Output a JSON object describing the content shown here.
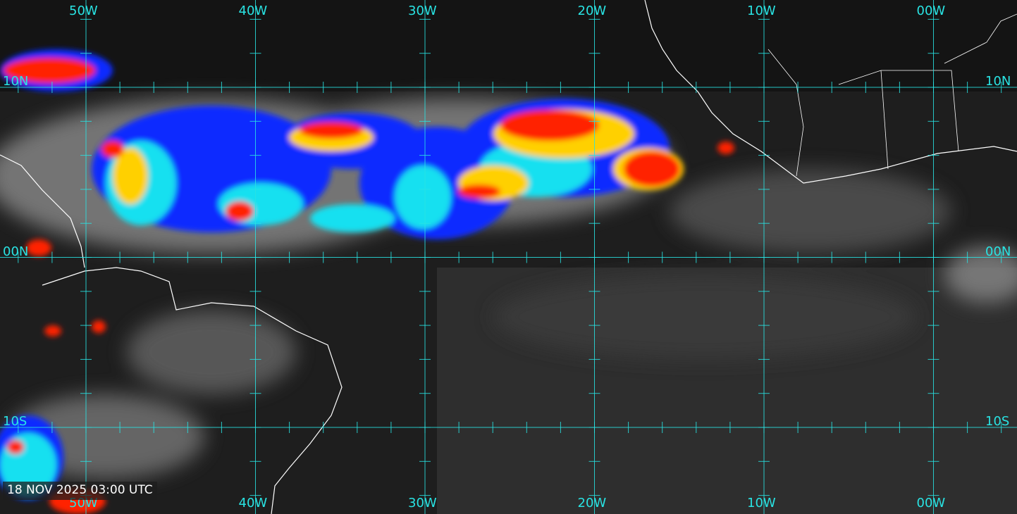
{
  "timestamp": "18 NOV 2025 03:00 UTC",
  "grid": {
    "color": "#29e3e3",
    "longitudes": [
      {
        "value": -50,
        "label": "50W"
      },
      {
        "value": -40,
        "label": "40W"
      },
      {
        "value": -30,
        "label": "30W"
      },
      {
        "value": -20,
        "label": "20W"
      },
      {
        "value": -10,
        "label": "10W"
      },
      {
        "value": 0,
        "label": "00W"
      }
    ],
    "latitudes": [
      {
        "value": 10,
        "label": "10N"
      },
      {
        "value": 0,
        "label": "00N"
      },
      {
        "value": -10,
        "label": "10S"
      }
    ],
    "minor_tick_interval_deg": 2
  },
  "imagery": {
    "type": "infrared satellite, enhanced cloud-top colors",
    "enhancement_colors": [
      "#0000ff",
      "#00ffff",
      "#ffff00",
      "#ff7f00",
      "#ff0000"
    ],
    "coastline_color": "#ffffff"
  }
}
